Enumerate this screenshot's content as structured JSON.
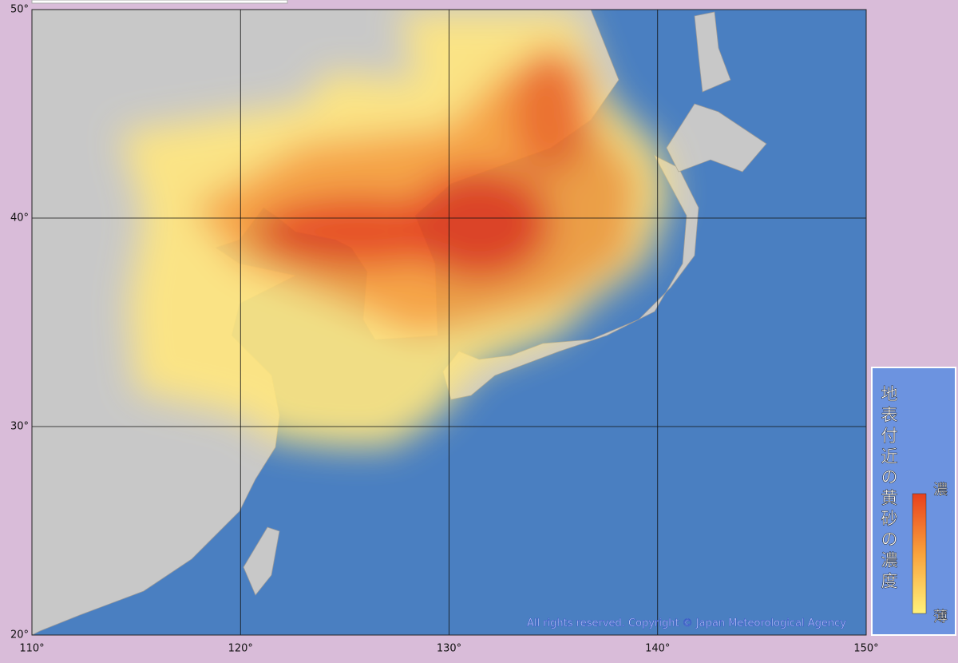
{
  "map": {
    "lon_ticks": [
      {
        "value": 110,
        "label": "110°"
      },
      {
        "value": 120,
        "label": "120°"
      },
      {
        "value": 130,
        "label": "130°"
      },
      {
        "value": 140,
        "label": "140°"
      },
      {
        "value": 150,
        "label": "150°"
      }
    ],
    "lat_ticks": [
      {
        "value": 20,
        "label": "20°"
      },
      {
        "value": 30,
        "label": "30°"
      },
      {
        "value": 40,
        "label": "40°"
      },
      {
        "value": 50,
        "label": "50°"
      }
    ],
    "legend": {
      "title": "地表付近の黄砂の濃度",
      "high": "濃",
      "low": "薄"
    },
    "copyright": "All rights reserved. Copyright © Japan Meteorological Agency"
  }
}
